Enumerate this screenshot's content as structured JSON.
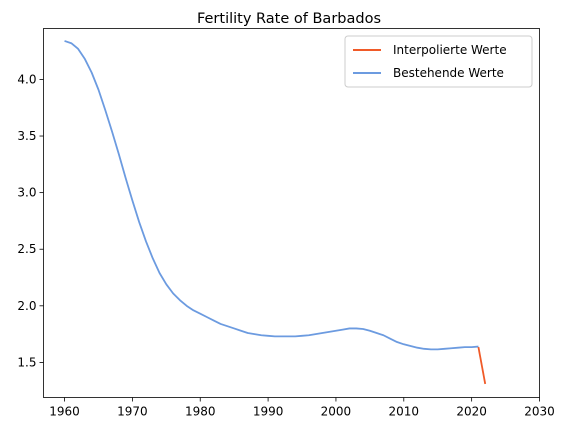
{
  "chart_data": {
    "type": "line",
    "title": "Fertility Rate of Barbados",
    "xlabel": "",
    "ylabel": "",
    "xlim": [
      1956.9,
      2030
    ],
    "ylim": [
      1.19,
      4.45
    ],
    "xticks": [
      1960,
      1970,
      1980,
      1990,
      2000,
      2010,
      2020,
      2030
    ],
    "yticks": [
      1.5,
      2.0,
      2.5,
      3.0,
      3.5,
      4.0
    ],
    "ytick_labels": [
      "1.5",
      "2.0",
      "2.5",
      "3.0",
      "3.5",
      "4.0"
    ],
    "grid": false,
    "legend_position": "top-right",
    "series": [
      {
        "name": "Interpolierte Werte",
        "color": "#f05a28",
        "x": [
          2021,
          2022
        ],
        "y": [
          1.635,
          1.31
        ]
      },
      {
        "name": "Bestehende Werte",
        "color": "#6c9be0",
        "x": [
          1960,
          1961,
          1962,
          1963,
          1964,
          1965,
          1966,
          1967,
          1968,
          1969,
          1970,
          1971,
          1972,
          1973,
          1974,
          1975,
          1976,
          1977,
          1978,
          1979,
          1980,
          1981,
          1982,
          1983,
          1984,
          1985,
          1986,
          1987,
          1988,
          1989,
          1990,
          1991,
          1992,
          1993,
          1994,
          1995,
          1996,
          1997,
          1998,
          1999,
          2000,
          2001,
          2002,
          2003,
          2004,
          2005,
          2006,
          2007,
          2008,
          2009,
          2010,
          2011,
          2012,
          2013,
          2014,
          2015,
          2016,
          2017,
          2018,
          2019,
          2020,
          2021
        ],
        "y": [
          4.34,
          4.32,
          4.27,
          4.18,
          4.06,
          3.91,
          3.73,
          3.54,
          3.34,
          3.13,
          2.93,
          2.74,
          2.57,
          2.42,
          2.29,
          2.19,
          2.11,
          2.05,
          2.0,
          1.96,
          1.93,
          1.9,
          1.87,
          1.84,
          1.82,
          1.8,
          1.78,
          1.76,
          1.75,
          1.74,
          1.735,
          1.73,
          1.73,
          1.73,
          1.73,
          1.735,
          1.74,
          1.75,
          1.76,
          1.77,
          1.78,
          1.79,
          1.8,
          1.8,
          1.795,
          1.78,
          1.76,
          1.74,
          1.71,
          1.68,
          1.66,
          1.645,
          1.63,
          1.62,
          1.615,
          1.615,
          1.62,
          1.625,
          1.63,
          1.635,
          1.635,
          1.64
        ]
      }
    ]
  }
}
